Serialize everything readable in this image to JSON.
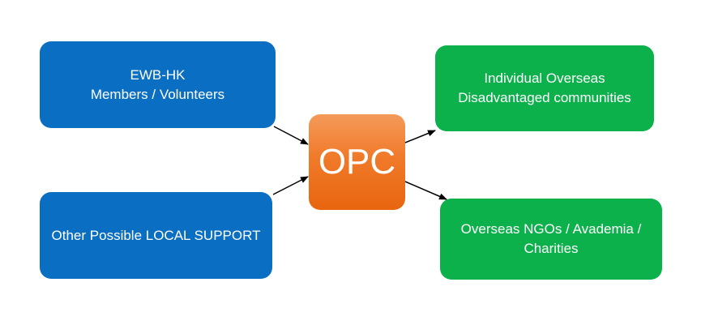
{
  "colors": {
    "source_box": "#0a6fc2",
    "target_box": "#0db14b",
    "center_box": "#f07a2a",
    "arrow": "#000000",
    "text": "#ffffff"
  },
  "nodes": {
    "ewb": {
      "line1": "EWB-HK",
      "line2": "Members / Volunteers"
    },
    "local": {
      "line1": "Other Possible LOCAL SUPPORT"
    },
    "opc": {
      "label": "OPC"
    },
    "individual": {
      "line1": "Individual Overseas",
      "line2": "Disadvantaged communities"
    },
    "ngos": {
      "line1": "Overseas NGOs / Avademia /",
      "line2": "Charities"
    }
  },
  "edges": [
    {
      "from": "ewb",
      "to": "opc"
    },
    {
      "from": "local",
      "to": "opc"
    },
    {
      "from": "opc",
      "to": "individual"
    },
    {
      "from": "opc",
      "to": "ngos"
    }
  ]
}
